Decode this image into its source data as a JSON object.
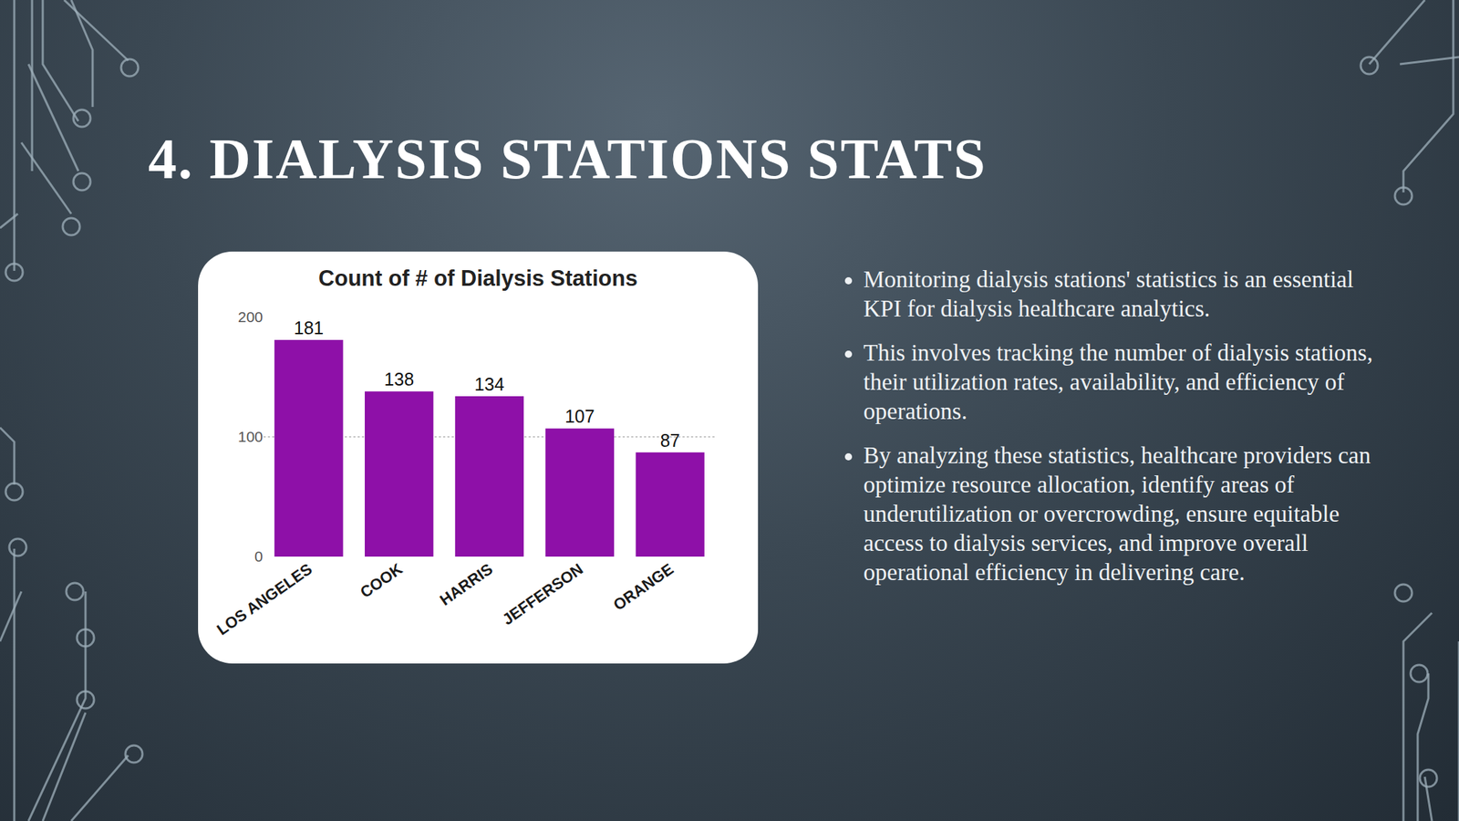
{
  "slide_title": "4. DIALYSIS STATIONS STATS",
  "bullets": [
    "Monitoring dialysis stations' statistics is an essential KPI for dialysis healthcare analytics.",
    "This involves tracking the number of dialysis stations, their utilization rates, availability, and efficiency of operations.",
    "By analyzing these statistics, healthcare providers can optimize resource allocation, identify areas of underutilization or overcrowding, ensure equitable access to dialysis services, and improve overall operational efficiency in delivering care."
  ],
  "chart_data": {
    "type": "bar",
    "title": "Count of # of Dialysis Stations",
    "categories": [
      "LOS ANGELES",
      "COOK",
      "HARRIS",
      "JEFFERSON",
      "ORANGE"
    ],
    "values": [
      181,
      138,
      134,
      107,
      87
    ],
    "color": "#8e10a8",
    "ylim": [
      0,
      200
    ],
    "yticks": [
      0,
      100,
      200
    ],
    "grid": true,
    "data_labels": true
  }
}
